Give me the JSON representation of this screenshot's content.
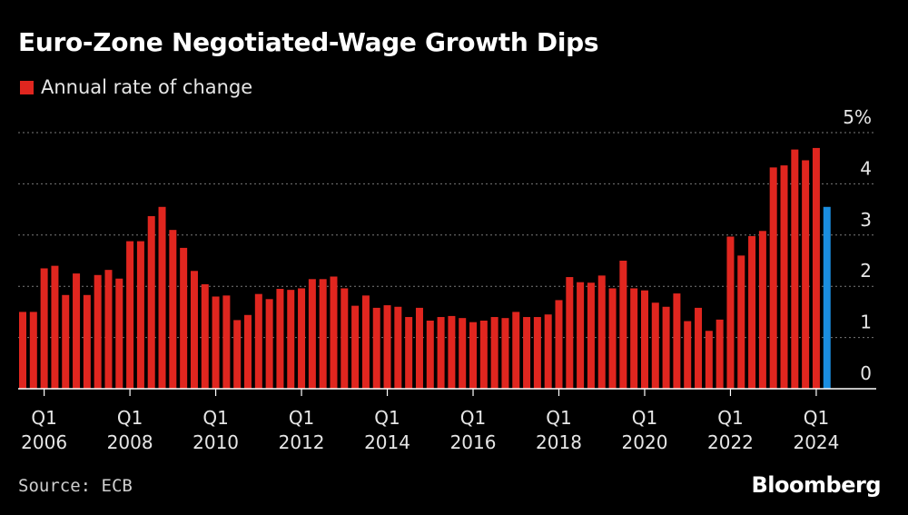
{
  "header": {
    "title": "Euro-Zone Negotiated-Wage Growth Dips"
  },
  "footer": {
    "source": "Source: ECB",
    "brand": "Bloomberg"
  },
  "colors": {
    "bar": "#e0261f",
    "highlight": "#1a8ee0",
    "background": "#000000",
    "grid": "#7a7a7a"
  },
  "chart_data": {
    "type": "bar",
    "title": "Euro-Zone Negotiated-Wage Growth Dips",
    "legend": [
      "Annual rate of change"
    ],
    "ylabel": "",
    "xlabel": "",
    "ylim": [
      0,
      5
    ],
    "y_ticks": [
      {
        "value": 0,
        "label": "0"
      },
      {
        "value": 1,
        "label": "1"
      },
      {
        "value": 2,
        "label": "2"
      },
      {
        "value": 3,
        "label": "3"
      },
      {
        "value": 4,
        "label": "4"
      },
      {
        "value": 5,
        "label": "5%"
      }
    ],
    "x_ticks": [
      {
        "index": 2,
        "q": "Q1",
        "year": "2006"
      },
      {
        "index": 10,
        "q": "Q1",
        "year": "2008"
      },
      {
        "index": 18,
        "q": "Q1",
        "year": "2010"
      },
      {
        "index": 26,
        "q": "Q1",
        "year": "2012"
      },
      {
        "index": 34,
        "q": "Q1",
        "year": "2014"
      },
      {
        "index": 42,
        "q": "Q1",
        "year": "2016"
      },
      {
        "index": 50,
        "q": "Q1",
        "year": "2018"
      },
      {
        "index": 58,
        "q": "Q1",
        "year": "2020"
      },
      {
        "index": 66,
        "q": "Q1",
        "year": "2022"
      },
      {
        "index": 74,
        "q": "Q1",
        "year": "2024"
      }
    ],
    "categories": [
      "2005 Q3",
      "2005 Q4",
      "2006 Q1",
      "2006 Q2",
      "2006 Q3",
      "2006 Q4",
      "2007 Q1",
      "2007 Q2",
      "2007 Q3",
      "2007 Q4",
      "2008 Q1",
      "2008 Q2",
      "2008 Q3",
      "2008 Q4",
      "2009 Q1",
      "2009 Q2",
      "2009 Q3",
      "2009 Q4",
      "2010 Q1",
      "2010 Q2",
      "2010 Q3",
      "2010 Q4",
      "2011 Q1",
      "2011 Q2",
      "2011 Q3",
      "2011 Q4",
      "2012 Q1",
      "2012 Q2",
      "2012 Q3",
      "2012 Q4",
      "2013 Q1",
      "2013 Q2",
      "2013 Q3",
      "2013 Q4",
      "2014 Q1",
      "2014 Q2",
      "2014 Q3",
      "2014 Q4",
      "2015 Q1",
      "2015 Q2",
      "2015 Q3",
      "2015 Q4",
      "2016 Q1",
      "2016 Q2",
      "2016 Q3",
      "2016 Q4",
      "2017 Q1",
      "2017 Q2",
      "2017 Q3",
      "2017 Q4",
      "2018 Q1",
      "2018 Q2",
      "2018 Q3",
      "2018 Q4",
      "2019 Q1",
      "2019 Q2",
      "2019 Q3",
      "2019 Q4",
      "2020 Q1",
      "2020 Q2",
      "2020 Q3",
      "2020 Q4",
      "2021 Q1",
      "2021 Q2",
      "2021 Q3",
      "2021 Q4",
      "2022 Q1",
      "2022 Q2",
      "2022 Q3",
      "2022 Q4",
      "2023 Q1",
      "2023 Q2",
      "2023 Q3",
      "2023 Q4",
      "2024 Q1",
      "2024 Q2"
    ],
    "values": [
      1.5,
      1.5,
      2.35,
      2.4,
      1.83,
      2.25,
      1.83,
      2.22,
      2.32,
      2.15,
      2.88,
      2.88,
      3.37,
      3.55,
      3.1,
      2.75,
      2.3,
      2.04,
      1.8,
      1.82,
      1.34,
      1.44,
      1.85,
      1.75,
      1.95,
      1.93,
      1.96,
      2.14,
      2.14,
      2.19,
      1.96,
      1.62,
      1.82,
      1.58,
      1.63,
      1.6,
      1.4,
      1.58,
      1.33,
      1.4,
      1.42,
      1.38,
      1.3,
      1.33,
      1.4,
      1.38,
      1.5,
      1.4,
      1.4,
      1.45,
      1.73,
      2.18,
      2.08,
      2.07,
      2.21,
      1.96,
      2.5,
      1.96,
      1.92,
      1.68,
      1.6,
      1.86,
      1.32,
      1.58,
      1.13,
      1.35,
      2.97,
      2.6,
      2.98,
      3.08,
      4.32,
      4.36,
      4.67,
      4.46,
      4.7,
      3.55
    ],
    "highlight_index": 75
  }
}
